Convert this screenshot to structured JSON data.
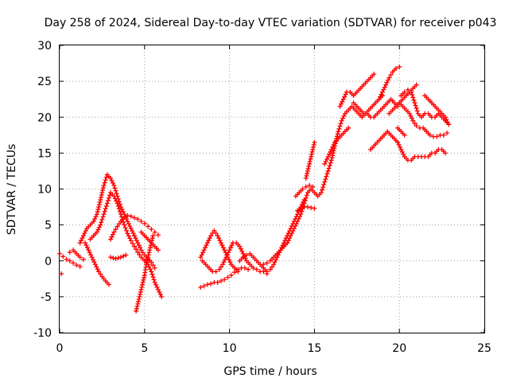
{
  "chart_data": {
    "type": "scatter",
    "title": "Day 258 of 2024, Sidereal Day-to-day VTEC variation (SDTVAR) for receiver p043",
    "xlabel": "GPS time / hours",
    "ylabel": "SDTVAR / TECUs",
    "xlim": [
      0,
      25
    ],
    "ylim": [
      -10,
      30
    ],
    "xticks": [
      "0",
      "5",
      "10",
      "15",
      "20",
      "25"
    ],
    "yticks": [
      "-10",
      "-5",
      "0",
      "5",
      "10",
      "15",
      "20",
      "25",
      "30"
    ],
    "grid": true,
    "marker": "plus",
    "color": "#ff0000",
    "series": [
      {
        "x": [
          0.0,
          0.2,
          0.4,
          0.6,
          0.8,
          1.0,
          1.2
        ],
        "y": [
          1.0,
          0.6,
          0.2,
          0.0,
          -0.3,
          -0.6,
          -0.8
        ]
      },
      {
        "x": [
          0.6,
          0.8,
          1.0,
          1.2,
          1.4
        ],
        "y": [
          1.2,
          1.5,
          1.0,
          0.5,
          0.2
        ]
      },
      {
        "x": [
          0.1
        ],
        "y": [
          -1.8
        ]
      },
      {
        "x": [
          1.2,
          1.4,
          1.6,
          1.8,
          2.0,
          2.2,
          2.4,
          2.6,
          2.8,
          3.0,
          3.2,
          3.4,
          3.6,
          3.8,
          4.0,
          4.2,
          4.4,
          4.6,
          4.8,
          5.0,
          5.2,
          5.4,
          5.6
        ],
        "y": [
          2.5,
          3.5,
          4.5,
          5.0,
          5.5,
          6.5,
          8.5,
          10.5,
          12.0,
          11.5,
          10.5,
          9.0,
          7.5,
          6.5,
          5.5,
          4.5,
          3.5,
          2.5,
          1.5,
          0.8,
          0.3,
          -0.2,
          -1.0
        ]
      },
      {
        "x": [
          1.8,
          2.0,
          2.2,
          2.4,
          2.6,
          2.8,
          3.0,
          3.2,
          3.4,
          3.6,
          3.8,
          4.0,
          4.2,
          4.4,
          4.6,
          4.8,
          5.0,
          5.2,
          5.4,
          5.6,
          5.8,
          6.0
        ],
        "y": [
          3.0,
          3.5,
          4.0,
          5.0,
          6.5,
          8.0,
          9.5,
          9.0,
          8.0,
          6.5,
          5.0,
          3.8,
          2.8,
          2.0,
          1.2,
          0.5,
          0.0,
          -0.5,
          -1.5,
          -3.0,
          -4.0,
          -5.0
        ]
      },
      {
        "x": [
          1.5,
          1.7,
          1.9,
          2.1,
          2.3,
          2.5,
          2.7,
          2.9
        ],
        "y": [
          2.5,
          1.5,
          0.5,
          -0.5,
          -1.5,
          -2.2,
          -2.8,
          -3.3
        ]
      },
      {
        "x": [
          3.0,
          3.2,
          3.4,
          3.6,
          3.8,
          4.0,
          4.2,
          4.4,
          4.6,
          4.8,
          5.0,
          5.2,
          5.4,
          5.6,
          5.8
        ],
        "y": [
          3.0,
          4.0,
          4.8,
          5.5,
          6.0,
          6.3,
          6.2,
          6.0,
          5.8,
          5.5,
          5.2,
          4.8,
          4.4,
          4.0,
          3.6
        ]
      },
      {
        "x": [
          3.0,
          3.3,
          3.6,
          3.9
        ],
        "y": [
          0.5,
          0.3,
          0.5,
          0.8
        ]
      },
      {
        "x": [
          4.5,
          4.6,
          4.7,
          4.8,
          4.9,
          5.0,
          5.1,
          5.2,
          5.3,
          5.4,
          5.5
        ],
        "y": [
          -7.0,
          -6.0,
          -5.0,
          -4.0,
          -3.0,
          -2.0,
          -0.5,
          0.5,
          1.5,
          2.5,
          3.5
        ]
      },
      {
        "x": [
          4.8,
          5.0,
          5.2,
          5.4,
          5.6,
          5.8
        ],
        "y": [
          4.0,
          3.5,
          3.0,
          2.5,
          2.0,
          1.5
        ]
      },
      {
        "x": [
          8.3,
          8.5,
          8.7,
          8.9,
          9.1,
          9.3,
          9.5,
          9.7,
          9.9,
          10.1,
          10.3,
          10.5,
          10.7,
          10.9,
          11.1
        ],
        "y": [
          -3.7,
          -3.5,
          -3.3,
          -3.2,
          -3.0,
          -3.0,
          -2.8,
          -2.6,
          -2.3,
          -2.0,
          -1.6,
          -1.2,
          -1.0,
          -1.0,
          -1.2
        ]
      },
      {
        "x": [
          8.3,
          8.5,
          8.7,
          8.9,
          9.1,
          9.3,
          9.5,
          9.7,
          9.9,
          10.1,
          10.3,
          10.5
        ],
        "y": [
          0.5,
          1.5,
          2.5,
          3.5,
          4.2,
          3.5,
          2.5,
          1.5,
          0.5,
          -0.5,
          -1.0,
          -1.5
        ]
      },
      {
        "x": [
          8.4,
          8.6,
          8.8,
          9.0,
          9.2,
          9.4,
          9.6,
          9.8,
          10.0,
          10.2,
          10.4,
          10.6,
          10.8,
          11.0,
          11.2,
          11.4,
          11.6,
          11.8,
          12.0,
          12.2
        ],
        "y": [
          0.0,
          -0.5,
          -1.0,
          -1.5,
          -1.5,
          -1.2,
          -0.5,
          0.5,
          1.5,
          2.5,
          2.5,
          2.0,
          1.0,
          0.0,
          -0.5,
          -1.0,
          -1.2,
          -1.5,
          -1.5,
          -1.8
        ]
      },
      {
        "x": [
          10.6,
          10.8,
          11.0,
          11.2,
          11.4,
          11.6,
          11.8,
          12.0,
          12.2,
          12.4,
          12.6,
          12.8,
          13.0,
          13.2,
          13.4,
          13.6,
          13.8,
          14.0,
          14.2,
          14.4
        ],
        "y": [
          0.0,
          0.5,
          0.8,
          1.0,
          0.5,
          0.0,
          -0.5,
          -1.0,
          -1.5,
          -1.2,
          -0.5,
          0.5,
          1.5,
          2.5,
          3.5,
          4.5,
          5.5,
          6.5,
          7.5,
          8.5
        ]
      },
      {
        "x": [
          12.0,
          12.2,
          12.4,
          12.6,
          12.8,
          13.0,
          13.2,
          13.4
        ],
        "y": [
          -0.5,
          -0.3,
          0.0,
          0.5,
          1.0,
          1.5,
          2.0,
          2.5
        ]
      },
      {
        "x": [
          13.4,
          13.6,
          13.8,
          14.0,
          14.2,
          14.4,
          14.6,
          14.8,
          15.0,
          15.2,
          15.4,
          15.6,
          15.8,
          16.0,
          16.2,
          16.4,
          16.6,
          16.8,
          17.0,
          17.2,
          17.4,
          17.6,
          17.8,
          18.0,
          18.2,
          18.4,
          18.6,
          18.8,
          19.0
        ],
        "y": [
          2.5,
          3.5,
          4.5,
          5.5,
          6.5,
          8.0,
          9.5,
          10.0,
          9.5,
          9.0,
          9.5,
          11.0,
          12.5,
          14.0,
          16.0,
          18.0,
          19.5,
          20.5,
          21.0,
          21.5,
          21.0,
          20.5,
          20.0,
          20.5,
          21.0,
          21.5,
          22.0,
          22.5,
          23.0
        ]
      },
      {
        "x": [
          14.0,
          14.2,
          14.4,
          14.6,
          14.8,
          15.0
        ],
        "y": [
          7.0,
          7.3,
          7.5,
          7.5,
          7.4,
          7.3
        ]
      },
      {
        "x": [
          13.9,
          14.1,
          14.3,
          14.5,
          14.7,
          14.9
        ],
        "y": [
          9.0,
          9.5,
          10.0,
          10.3,
          10.5,
          10.3
        ]
      },
      {
        "x": [
          14.5,
          14.6,
          14.7,
          14.8,
          14.9,
          15.0
        ],
        "y": [
          11.5,
          12.5,
          13.5,
          14.5,
          15.5,
          16.5
        ]
      },
      {
        "x": [
          15.6,
          15.8,
          16.0,
          16.2,
          16.4,
          16.6,
          16.8,
          17.0
        ],
        "y": [
          13.5,
          14.5,
          15.5,
          16.5,
          17.0,
          17.5,
          18.0,
          18.5
        ]
      },
      {
        "x": [
          16.5,
          16.7,
          16.9,
          17.1,
          17.3,
          17.5,
          17.7,
          17.9,
          18.1,
          18.3,
          18.5
        ],
        "y": [
          21.5,
          22.5,
          23.5,
          23.5,
          23.0,
          23.5,
          24.0,
          24.5,
          25.0,
          25.5,
          26.0
        ]
      },
      {
        "x": [
          17.3,
          17.5,
          17.7,
          17.9,
          18.1,
          18.3,
          18.5,
          18.7,
          18.9,
          19.1,
          19.3,
          19.5,
          19.7,
          19.9
        ],
        "y": [
          22.0,
          21.5,
          21.0,
          20.5,
          20.5,
          20.0,
          20.0,
          20.5,
          21.0,
          21.5,
          22.0,
          22.5,
          22.0,
          21.5
        ]
      },
      {
        "x": [
          18.8,
          19.0,
          19.2,
          19.4,
          19.6,
          19.8,
          20.0
        ],
        "y": [
          22.5,
          23.5,
          24.5,
          25.5,
          26.3,
          26.8,
          27.0
        ]
      },
      {
        "x": [
          19.4,
          19.6,
          19.8,
          20.0,
          20.2,
          20.4,
          20.6,
          20.8,
          21.0
        ],
        "y": [
          20.5,
          21.0,
          21.5,
          22.0,
          22.5,
          23.0,
          23.5,
          24.0,
          24.5
        ]
      },
      {
        "x": [
          18.3,
          18.5,
          18.7,
          18.9,
          19.1,
          19.3,
          19.5,
          19.7,
          19.9
        ],
        "y": [
          15.5,
          16.0,
          16.5,
          17.0,
          17.5,
          18.0,
          17.5,
          17.0,
          16.5
        ]
      },
      {
        "x": [
          19.9,
          20.1,
          20.3,
          20.5,
          20.7,
          20.9,
          21.1,
          21.3,
          21.5,
          21.7,
          21.9,
          22.1,
          22.3,
          22.5,
          22.7
        ],
        "y": [
          16.5,
          15.5,
          14.5,
          14.0,
          14.0,
          14.5,
          14.5,
          14.5,
          14.5,
          14.5,
          15.0,
          15.0,
          15.5,
          15.5,
          15.0
        ]
      },
      {
        "x": [
          20.0,
          20.2,
          20.4,
          20.6,
          20.8,
          21.0,
          21.2,
          21.4,
          21.6,
          21.8,
          22.0,
          22.2,
          22.4,
          22.6,
          22.8
        ],
        "y": [
          22.0,
          21.5,
          21.0,
          20.5,
          19.5,
          18.8,
          18.5,
          18.5,
          18.0,
          17.5,
          17.3,
          17.3,
          17.5,
          17.5,
          17.8
        ]
      },
      {
        "x": [
          20.1,
          20.3,
          20.5,
          20.7,
          20.9,
          21.1,
          21.3,
          21.5,
          21.7,
          21.9,
          22.1,
          22.3,
          22.5,
          22.7,
          22.9
        ],
        "y": [
          23.0,
          23.5,
          23.8,
          23.5,
          22.0,
          20.5,
          20.0,
          20.5,
          20.5,
          20.0,
          20.0,
          20.5,
          20.0,
          19.5,
          19.0
        ]
      },
      {
        "x": [
          21.5,
          21.7,
          21.9,
          22.1,
          22.3,
          22.5,
          22.7,
          22.9
        ],
        "y": [
          23.0,
          22.5,
          22.0,
          21.5,
          21.0,
          20.5,
          20.0,
          19.0
        ]
      },
      {
        "x": [
          19.9,
          20.1,
          20.3
        ],
        "y": [
          18.5,
          18.0,
          17.5
        ]
      }
    ]
  }
}
